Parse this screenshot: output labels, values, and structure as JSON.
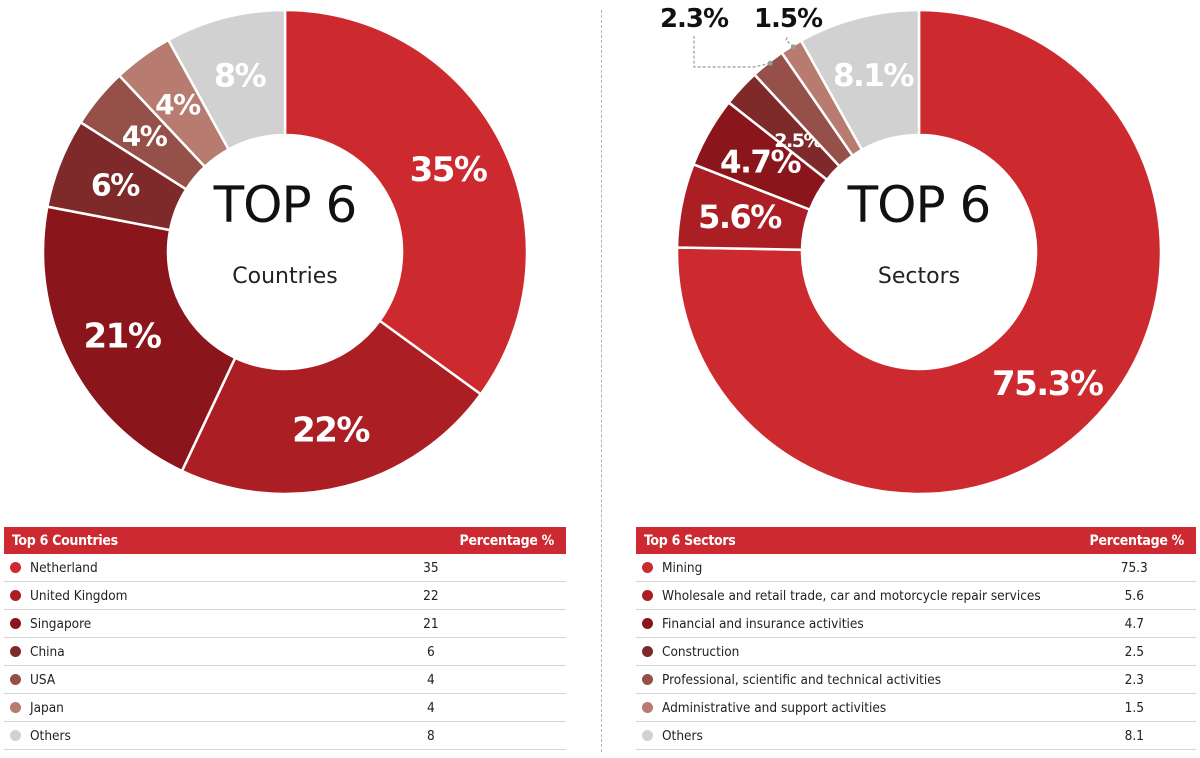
{
  "chart_data": [
    {
      "type": "pie",
      "title": "TOP 6",
      "subtitle": "Countries",
      "categories": [
        "Netherland",
        "United Kingdom",
        "Singapore",
        "China",
        "USA",
        "Japan",
        "Others"
      ],
      "values": [
        35,
        22,
        21,
        6,
        4,
        4,
        8
      ],
      "slice_labels": [
        "35%",
        "22%",
        "21%",
        "6%",
        "4%",
        "4%",
        "8%"
      ],
      "colors": [
        "#cd2a30",
        "#ab1e24",
        "#8a151b",
        "#7e2a2b",
        "#945049",
        "#b87b70",
        "#d1d1d1"
      ]
    },
    {
      "type": "pie",
      "title": "TOP 6",
      "subtitle": "Sectors",
      "categories": [
        "Mining",
        "Wholesale and retail trade, car and motorcycle repair services",
        "Financial and insurance activities",
        "Construction",
        "Professional, scientific and technical activities",
        "Administrative and support activities",
        "Others"
      ],
      "values": [
        75.3,
        5.6,
        4.7,
        2.5,
        2.3,
        1.5,
        8.1
      ],
      "slice_labels": [
        "75.3%",
        "5.6%",
        "4.7%",
        "2.5%",
        "2.3%",
        "1.5%",
        "8.1%"
      ],
      "colors": [
        "#cd2a30",
        "#ab1e24",
        "#8a151b",
        "#7e2a2b",
        "#945049",
        "#b87b70",
        "#d1d1d1"
      ]
    }
  ],
  "tables": {
    "countries": {
      "header_name": "Top 6 Countries",
      "header_value": "Percentage %",
      "rows": [
        {
          "name": "Netherland",
          "value": "35"
        },
        {
          "name": "United Kingdom",
          "value": "22"
        },
        {
          "name": "Singapore",
          "value": "21"
        },
        {
          "name": "China",
          "value": "6"
        },
        {
          "name": "USA",
          "value": "4"
        },
        {
          "name": "Japan",
          "value": "4"
        },
        {
          "name": "Others",
          "value": "8"
        }
      ]
    },
    "sectors": {
      "header_name": "Top 6 Sectors",
      "header_value": "Percentage %",
      "rows": [
        {
          "name": "Mining",
          "value": "75.3"
        },
        {
          "name": "Wholesale and retail trade, car and motorcycle repair services",
          "value": "5.6"
        },
        {
          "name": "Financial and insurance activities",
          "value": "4.7"
        },
        {
          "name": "Construction",
          "value": "2.5"
        },
        {
          "name": "Professional, scientific and technical activities",
          "value": "2.3"
        },
        {
          "name": "Administrative and support activities",
          "value": "1.5"
        },
        {
          "name": "Others",
          "value": "8.1"
        }
      ]
    }
  }
}
